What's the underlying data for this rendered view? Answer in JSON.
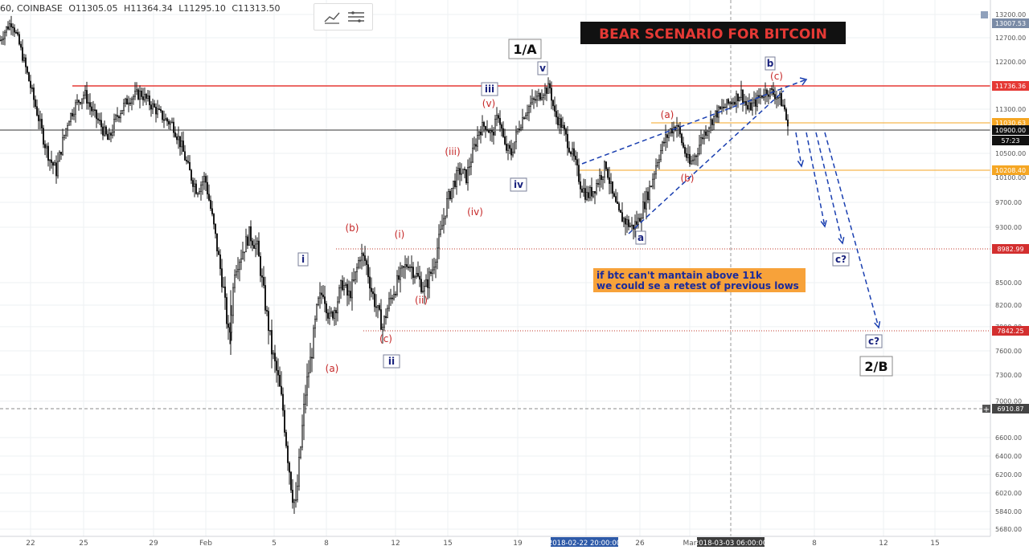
{
  "header": {
    "symbol": "60, COINBASE",
    "open": "O11305.05",
    "high": "H11364.34",
    "low": "L11295.10",
    "close": "C11313.50",
    "tool_icons": [
      "line-tool-icon",
      "settings-lines-icon"
    ]
  },
  "chart_data": {
    "type": "candlestick",
    "title": "BEAR SCENARIO FOR BITCOIN",
    "x_tick_labels": [
      "22",
      "25",
      "29",
      "Feb",
      "5",
      "8",
      "12",
      "15",
      "19",
      "22",
      "26",
      "Mar",
      "5",
      "8",
      "12",
      "15"
    ],
    "crosshair_date_labels": [
      "2018-02-22 20:00:00",
      "2018-03-03 06:00:00"
    ],
    "y_tick_labels": [
      "13200.00",
      "12700.00",
      "12200.00",
      "11300.00",
      "10500.00",
      "10100.00",
      "9700.00",
      "9300.00",
      "8500.00",
      "8200.00",
      "7900.00",
      "7600.00",
      "7300.00",
      "7000.00",
      "6600.00",
      "6400.00",
      "6200.00",
      "6020.00",
      "5840.00",
      "5680.00"
    ],
    "price_markers": [
      {
        "value": "13007.53",
        "color": "#7a8ba6"
      },
      {
        "value": "11736.36",
        "color": "#e53935"
      },
      {
        "value": "11030.63",
        "color": "#f5a623"
      },
      {
        "value": "10900.00",
        "color": "#111111"
      },
      {
        "value": "57:23",
        "color": "#111111"
      },
      {
        "value": "10208.40",
        "color": "#f5a623"
      },
      {
        "value": "8982.99",
        "color": "#d32f2f"
      },
      {
        "value": "7842.25",
        "color": "#d32f2f"
      },
      {
        "value": "6910.87",
        "color": "#444444"
      }
    ],
    "horizontal_levels": [
      {
        "name": "resistance",
        "value": 11736.36,
        "color": "#e53935"
      },
      {
        "name": "current",
        "value": 10900,
        "color": "#333333"
      },
      {
        "name": "orange-high",
        "value": 11030.63,
        "color": "#f5a623"
      },
      {
        "name": "orange-low",
        "value": 10208.4,
        "color": "#f5a623"
      },
      {
        "name": "support-1",
        "value": 8982.99,
        "color": "#c0392b"
      },
      {
        "name": "support-2",
        "value": 7842.25,
        "color": "#c0392b"
      },
      {
        "name": "crosshair",
        "value": 6910.87,
        "color": "#888888"
      }
    ],
    "wave_labels_red": [
      "(a)",
      "(b)",
      "(c)",
      "(i)",
      "(ii)",
      "(iii)",
      "(iv)",
      "(v)",
      "(a)",
      "(b)",
      "(c)"
    ],
    "wave_labels_boxed": [
      "i",
      "ii",
      "iii",
      "iv",
      "v",
      "a",
      "b",
      "c?",
      "c?"
    ],
    "major_labels": [
      "1/A",
      "2/B"
    ],
    "note": "if btc can't mantain above 11k\nwe could se a retest of previous lows",
    "note_line1": "if btc can't mantain above 11k",
    "note_line2": "we could se a retest of previous lows",
    "colors": {
      "up": "#1a1a1a",
      "down": "#1a1a1a",
      "title_bg": "#111111",
      "title_fg": "#e53935",
      "note_bg": "#f7a23a",
      "note_fg": "#1a2a9c",
      "wave_red": "#c62828",
      "wave_blue": "#1a237e",
      "projection": "#1a3fb0"
    }
  }
}
